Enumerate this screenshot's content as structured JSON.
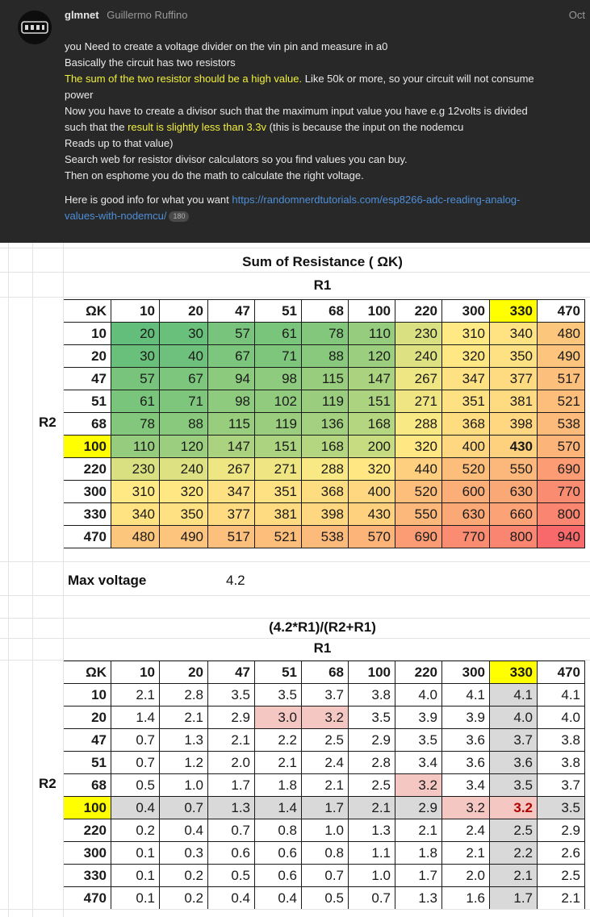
{
  "post": {
    "username": "glmnet",
    "display_name": "Guillermo Ruffino",
    "date": "Oct",
    "lines": [
      [
        {
          "t": "you Need to create a voltage divider on the vin pin and measure in a0"
        }
      ],
      [
        {
          "t": "Basically the circuit has two resistors"
        }
      ],
      [
        {
          "t": "The sum of the two resistor should be a high value.",
          "hl": true
        },
        {
          "t": " Like 50k or more, so your circuit will not consume"
        }
      ],
      [
        {
          "t": "power"
        }
      ],
      [
        {
          "t": "Now you have to create a divisor such that the maximum input value you have e.g 12volts is divided"
        }
      ],
      [
        {
          "t": "such that the "
        },
        {
          "t": "result is slightly less than 3.3v",
          "hl": true
        },
        {
          "t": " (this is because the input on the nodemcu"
        }
      ],
      [
        {
          "t": "Reads up to that value)"
        }
      ],
      [
        {
          "t": "Search web for resistor divisor calculators so you find values you can buy."
        }
      ],
      [
        {
          "t": "Then on esphome you do the math to calculate the right voltage."
        }
      ]
    ],
    "link_prefix": "Here is good info for what you want ",
    "link_line1": "https://randomnerdtutorials.com/esp8266-adc-reading-analog-",
    "link_line2": "values-with-nodemcu/",
    "link_count": "180"
  },
  "sheet": {
    "table1_title": "Sum of Resistance ( ΩK)",
    "table2_title": "(4.2*R1)/(R2+R1)",
    "r1_label": "R1",
    "r2_label": "R2",
    "corner_label": "ΩK",
    "max_voltage_label": "Max voltage",
    "max_voltage_value": "4.2",
    "r1_values": [
      "10",
      "20",
      "47",
      "51",
      "68",
      "100",
      "220",
      "300",
      "330",
      "470"
    ],
    "r2_values": [
      "10",
      "20",
      "47",
      "51",
      "68",
      "100",
      "220",
      "300",
      "330",
      "470"
    ],
    "highlight_r1": "330",
    "highlight_r2": "100",
    "sum_table": [
      [
        "20",
        "30",
        "57",
        "61",
        "78",
        "110",
        "230",
        "310",
        "340",
        "480"
      ],
      [
        "30",
        "40",
        "67",
        "71",
        "88",
        "120",
        "240",
        "320",
        "350",
        "490"
      ],
      [
        "57",
        "67",
        "94",
        "98",
        "115",
        "147",
        "267",
        "347",
        "377",
        "517"
      ],
      [
        "61",
        "71",
        "98",
        "102",
        "119",
        "151",
        "271",
        "351",
        "381",
        "521"
      ],
      [
        "78",
        "88",
        "115",
        "119",
        "136",
        "168",
        "288",
        "368",
        "398",
        "538"
      ],
      [
        "110",
        "120",
        "147",
        "151",
        "168",
        "200",
        "320",
        "400",
        "430",
        "570"
      ],
      [
        "230",
        "240",
        "267",
        "271",
        "288",
        "320",
        "440",
        "520",
        "550",
        "690"
      ],
      [
        "310",
        "320",
        "347",
        "351",
        "368",
        "400",
        "520",
        "600",
        "630",
        "770"
      ],
      [
        "340",
        "350",
        "377",
        "381",
        "398",
        "430",
        "550",
        "630",
        "660",
        "800"
      ],
      [
        "480",
        "490",
        "517",
        "521",
        "538",
        "570",
        "690",
        "770",
        "800",
        "940"
      ]
    ],
    "voltage_table": [
      [
        "2.1",
        "2.8",
        "3.5",
        "3.5",
        "3.7",
        "3.8",
        "4.0",
        "4.1",
        "4.1",
        "4.1"
      ],
      [
        "1.4",
        "2.1",
        "2.9",
        "3.0",
        "3.2",
        "3.5",
        "3.9",
        "3.9",
        "4.0",
        "4.0"
      ],
      [
        "0.7",
        "1.3",
        "2.1",
        "2.2",
        "2.5",
        "2.9",
        "3.5",
        "3.6",
        "3.7",
        "3.8"
      ],
      [
        "0.7",
        "1.2",
        "2.0",
        "2.1",
        "2.4",
        "2.8",
        "3.4",
        "3.6",
        "3.6",
        "3.8"
      ],
      [
        "0.5",
        "1.0",
        "1.7",
        "1.8",
        "2.1",
        "2.5",
        "3.2",
        "3.4",
        "3.5",
        "3.7"
      ],
      [
        "0.4",
        "0.7",
        "1.3",
        "1.4",
        "1.7",
        "2.1",
        "2.9",
        "3.2",
        "3.2",
        "3.5"
      ],
      [
        "0.2",
        "0.4",
        "0.7",
        "0.8",
        "1.0",
        "1.3",
        "2.1",
        "2.4",
        "2.5",
        "2.9"
      ],
      [
        "0.1",
        "0.3",
        "0.6",
        "0.6",
        "0.8",
        "1.1",
        "1.8",
        "2.1",
        "2.2",
        "2.6"
      ],
      [
        "0.1",
        "0.2",
        "0.5",
        "0.6",
        "0.7",
        "1.0",
        "1.7",
        "2.0",
        "2.1",
        "2.5"
      ],
      [
        "0.1",
        "0.2",
        "0.4",
        "0.4",
        "0.5",
        "0.7",
        "1.3",
        "1.6",
        "1.7",
        "2.1"
      ]
    ],
    "colors": {
      "yellow": "#ffff00",
      "gray": "#d9d9d9",
      "pink": "#f4c7c3",
      "scale_min": "#63be7b",
      "scale_mid": "#ffeb84",
      "scale_max": "#f8696b",
      "bold_red": "#b00000"
    }
  }
}
